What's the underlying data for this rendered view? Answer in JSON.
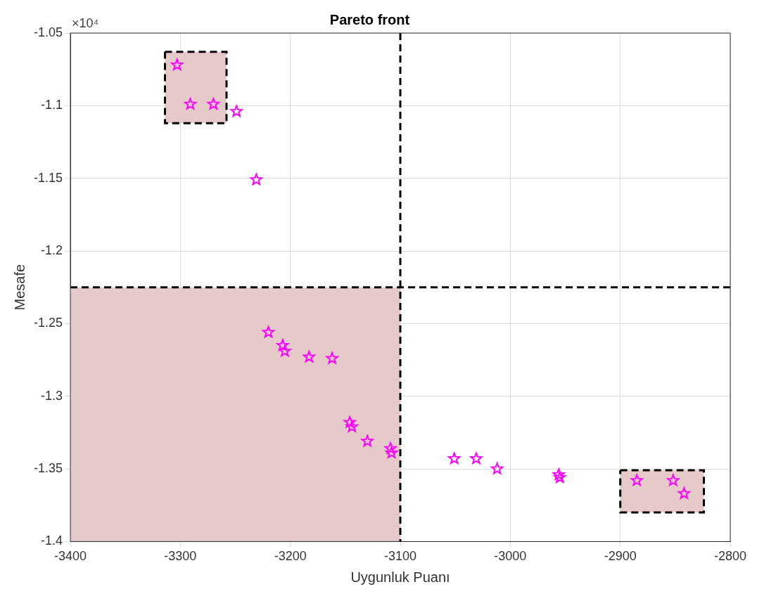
{
  "chart_data": {
    "type": "scatter",
    "title": "Pareto front",
    "xlabel": "Uygunluk Puanı",
    "ylabel": "Mesafe",
    "annotations": [
      "×10⁴"
    ],
    "x": [
      -3303,
      -3291,
      -3270,
      -3249,
      -3231,
      -3220,
      -3207,
      -3205,
      -3183,
      -3162,
      -3146,
      -3144,
      -3130,
      -3109,
      -3108,
      -3051,
      -3031,
      -3012,
      -2956,
      -2955,
      -2885,
      -2852,
      -2842
    ],
    "series": [
      {
        "color": "#ff00ff",
        "values": [
          -1.072,
          -1.099,
          -1.099,
          -1.104,
          -1.151,
          -1.256,
          -1.265,
          -1.269,
          -1.273,
          -1.274,
          -1.318,
          -1.321,
          -1.331,
          -1.336,
          -1.339,
          -1.343,
          -1.343,
          -1.35,
          -1.354,
          -1.356,
          -1.358,
          -1.358,
          -1.367
        ]
      },
      {
        "type": "area",
        "color": "#e6c9c9",
        "marker": "none",
        "x": [
          -3400,
          -3100,
          -3100,
          -3400,
          -3400
        ],
        "values": [
          -1.225,
          -1.225,
          -1.4,
          -1.4,
          -1.225
        ]
      },
      {
        "type": "area",
        "color": "#e6c9c9",
        "marker": "none",
        "line_style": "dashed",
        "x": [
          -3314,
          -3258,
          -3258,
          -3314,
          -3314
        ],
        "values": [
          -1.063,
          -1.063,
          -1.112,
          -1.112,
          -1.063
        ]
      },
      {
        "type": "area",
        "color": "#e6c9c9",
        "marker": "none",
        "line_style": "dashed",
        "x": [
          -2900,
          -2824,
          -2824,
          -2900,
          -2900
        ],
        "values": [
          -1.351,
          -1.351,
          -1.38,
          -1.38,
          -1.351
        ]
      }
    ],
    "marker": "star",
    "grid": true,
    "legend": false,
    "xlim": [
      -3400,
      -2800
    ],
    "xticks": [
      -3400,
      -3300,
      -3200,
      -3100,
      -3000,
      -2900,
      -2800
    ],
    "ylim": [
      -1.4,
      -1.05
    ],
    "yticks": [
      -1.4,
      -1.35,
      -1.3,
      -1.25,
      -1.2,
      -1.15,
      -1.1,
      -1.05
    ],
    "ref_lines": [
      {
        "axis": "x",
        "value": -3100,
        "color": "#000000",
        "line_style": "dashed"
      },
      {
        "axis": "y",
        "value": -1.225,
        "color": "#000000",
        "line_style": "dashed"
      }
    ]
  }
}
